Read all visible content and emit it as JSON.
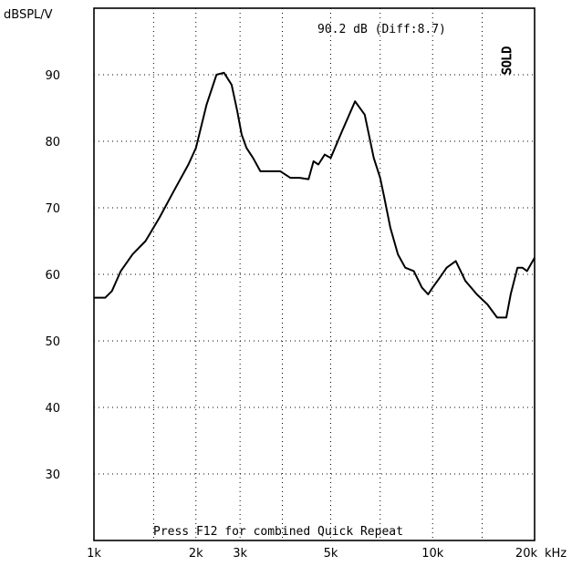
{
  "chart_data": {
    "type": "line",
    "ylabel": "dBSPL/V",
    "xunit": "kHz",
    "xscale": "log",
    "xlim": [
      1000,
      20000
    ],
    "ylim": [
      20,
      100
    ],
    "grid": true,
    "x_ticks": [
      {
        "value": 1000,
        "label": "1k"
      },
      {
        "value": 2000,
        "label": "2k"
      },
      {
        "value": 2700,
        "label": "3k"
      },
      {
        "value": 5000,
        "label": "5k"
      },
      {
        "value": 10000,
        "label": "10k"
      },
      {
        "value": 20000,
        "label": "20k"
      }
    ],
    "x_grid": [
      1500,
      2000,
      2700,
      3600,
      5000,
      7000,
      10000,
      14000,
      20000
    ],
    "y_ticks": [
      30,
      40,
      50,
      60,
      70,
      80,
      90
    ],
    "y_grid": [
      30,
      40,
      50,
      60,
      70,
      80,
      90
    ],
    "readout": "90.2 dB (Diff:8.7)",
    "watermark": "SOLD",
    "footer_note": "Press F12 for combined Quick Repeat",
    "series": [
      {
        "x": [
          1000,
          1080,
          1130,
          1200,
          1300,
          1420,
          1560,
          1720,
          1900,
          2000,
          2150,
          2300,
          2420,
          2550,
          2650,
          2730,
          2820,
          2950,
          3100,
          3300,
          3550,
          3800,
          4050,
          4300,
          4450,
          4600,
          4800,
          5000,
          5400,
          5900,
          6300,
          6700,
          7000,
          7200,
          7500,
          7900,
          8300,
          8800,
          9300,
          9700,
          10000,
          10500,
          11000,
          11700,
          12500,
          13000,
          13500,
          14500,
          15500,
          16500,
          17000,
          17800,
          18400,
          19000,
          20000
        ],
        "y": [
          56.5,
          56.5,
          57.5,
          60.5,
          63,
          65,
          68.5,
          72.5,
          76.5,
          79,
          85.5,
          90,
          90.3,
          88.5,
          84.5,
          81,
          79,
          77.5,
          75.5,
          75.5,
          75.5,
          74.5,
          74.5,
          74.3,
          77,
          76.5,
          78,
          77.5,
          81.5,
          86,
          84,
          77.5,
          74.5,
          71.5,
          67,
          63,
          61,
          60.5,
          58,
          57,
          58,
          59.5,
          61,
          62,
          59,
          58,
          57,
          55.5,
          53.5,
          53.5,
          57,
          61,
          61,
          60.5,
          62.5
        ]
      }
    ]
  }
}
